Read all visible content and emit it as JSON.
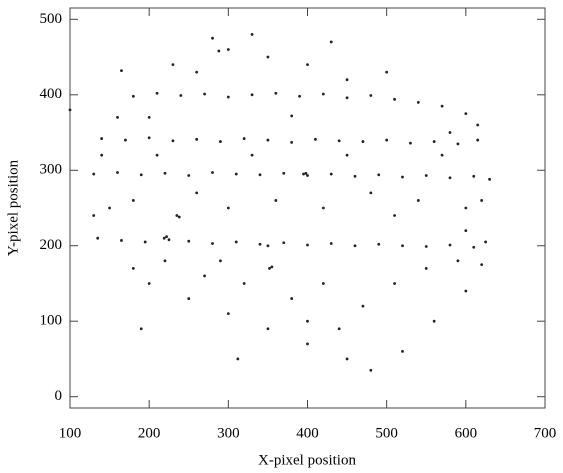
{
  "chart_data": {
    "type": "scatter",
    "xlabel": "X-pixel position",
    "ylabel": "Y-pixel position",
    "xlim": [
      100,
      700
    ],
    "ylim": [
      -15,
      515
    ],
    "xticks": [
      100,
      200,
      300,
      400,
      500,
      600,
      700
    ],
    "yticks": [
      0,
      100,
      200,
      300,
      400,
      500
    ],
    "color": "#222222",
    "x": [
      180,
      210,
      240,
      270,
      300,
      330,
      360,
      390,
      420,
      450,
      480,
      510,
      540,
      570,
      600,
      140,
      170,
      200,
      230,
      260,
      290,
      320,
      350,
      380,
      410,
      440,
      470,
      500,
      530,
      560,
      590,
      615,
      130,
      160,
      190,
      220,
      250,
      280,
      310,
      340,
      370,
      400,
      430,
      460,
      490,
      520,
      550,
      580,
      610,
      630,
      135,
      165,
      195,
      250,
      280,
      310,
      340,
      370,
      400,
      430,
      460,
      490,
      520,
      550,
      580,
      610,
      625,
      150,
      180,
      210,
      260,
      300,
      330,
      360,
      420,
      450,
      480,
      510,
      540,
      570,
      600,
      200,
      260,
      300,
      330,
      280,
      400,
      450,
      500,
      350,
      230,
      200,
      250,
      300,
      350,
      400,
      450,
      480,
      520,
      560,
      600,
      620,
      180,
      220,
      270,
      320,
      380,
      420,
      470,
      510,
      550,
      590,
      400,
      440,
      350,
      290,
      130,
      140,
      160,
      580,
      620,
      600,
      222,
      225,
      219,
      235,
      238,
      355,
      352,
      395,
      398,
      380,
      312,
      165,
      288,
      615,
      190,
      100,
      430
    ],
    "values": [
      398,
      402,
      399,
      401,
      397,
      400,
      402,
      398,
      401,
      396,
      399,
      394,
      390,
      385,
      375,
      342,
      340,
      343,
      339,
      341,
      338,
      342,
      340,
      337,
      341,
      339,
      338,
      340,
      336,
      338,
      335,
      340,
      295,
      297,
      294,
      296,
      293,
      297,
      295,
      294,
      296,
      293,
      295,
      292,
      294,
      291,
      293,
      290,
      292,
      288,
      210,
      207,
      205,
      206,
      203,
      205,
      202,
      204,
      201,
      203,
      200,
      202,
      200,
      199,
      201,
      198,
      205,
      250,
      260,
      320,
      270,
      250,
      320,
      260,
      250,
      320,
      270,
      240,
      260,
      320,
      250,
      370,
      430,
      460,
      480,
      475,
      440,
      420,
      430,
      450,
      440,
      150,
      130,
      110,
      90,
      70,
      50,
      35,
      60,
      100,
      140,
      175,
      170,
      180,
      160,
      150,
      130,
      150,
      120,
      150,
      170,
      180,
      100,
      90,
      200,
      180,
      240,
      320,
      370,
      350,
      260,
      220,
      212,
      208,
      210,
      240,
      238,
      172,
      170,
      295,
      296,
      372,
      50,
      432,
      458,
      360,
      90,
      380,
      470
    ]
  }
}
